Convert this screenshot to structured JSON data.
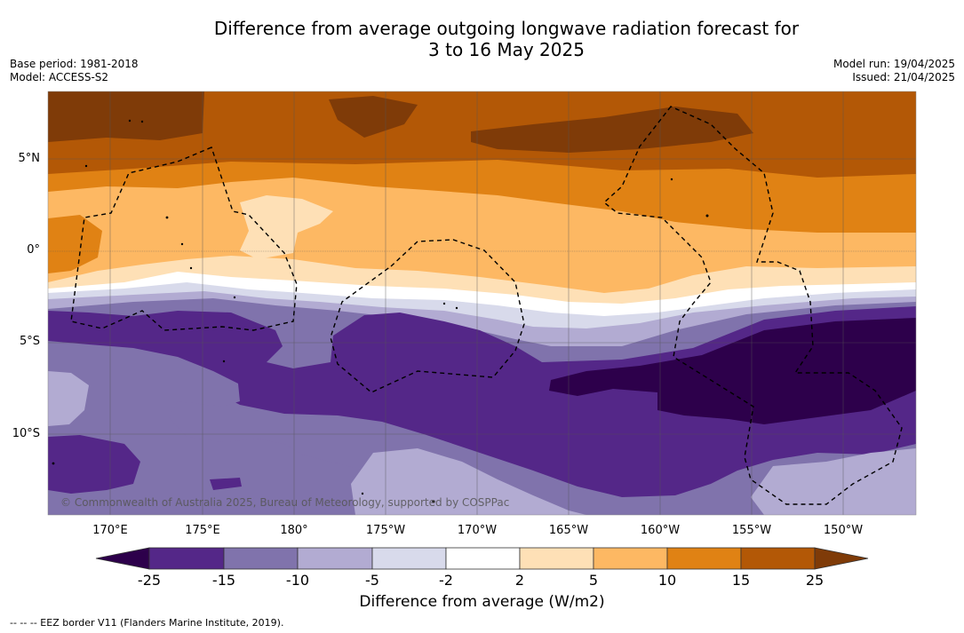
{
  "title_line1": "Difference from average outgoing longwave radiation forecast for",
  "title_line2": "3 to 16 May 2025",
  "base_period": "Base period: 1981-2018",
  "model": "Model: ACCESS-S2",
  "model_run": "Model run: 19/04/2025",
  "issued": "Issued: 21/04/2025",
  "copyright": "© Commonwealth of Australia 2025, Bureau of Meteorology, supported by COSPPac",
  "lat_labels": [
    "5°N",
    "0°",
    "5°S",
    "10°S"
  ],
  "lon_labels": [
    "170°E",
    "175°E",
    "180°",
    "175°W",
    "170°W",
    "165°W",
    "160°W",
    "155°W",
    "150°W"
  ],
  "colorbar": {
    "ticks": [
      "-25",
      "-15",
      "-10",
      "-5",
      "-2",
      "2",
      "5",
      "10",
      "15",
      "25"
    ],
    "colors": [
      "#2d004b",
      "#542788",
      "#8073ac",
      "#b2abd2",
      "#d8daeb",
      "#ffffff",
      "#fee0b6",
      "#fdb863",
      "#e08214",
      "#b35806",
      "#7f3b08"
    ],
    "label": "Difference from average (W/m2)"
  },
  "legend_eez": "--  --  -- EEZ border V11 (Flanders Marine Institute, 2019)."
}
